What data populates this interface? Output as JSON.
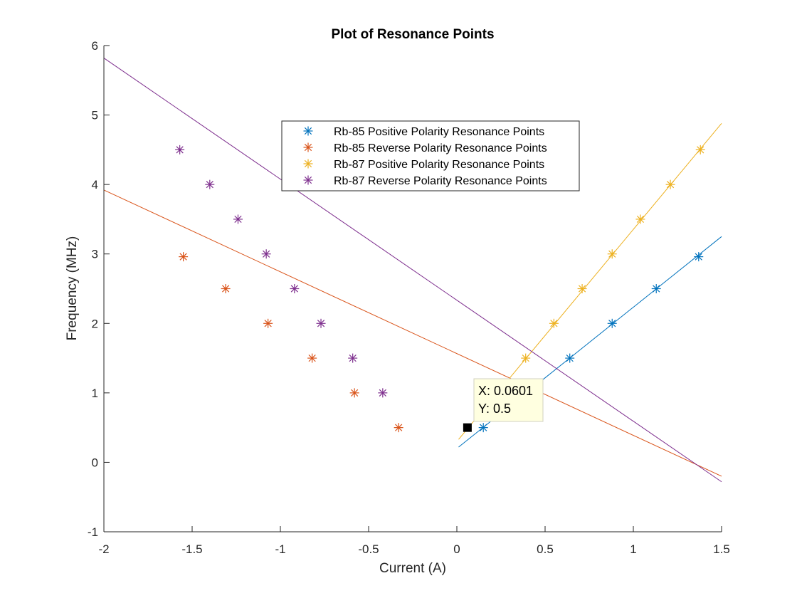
{
  "chart_data": {
    "type": "scatter",
    "title": "Plot of Resonance Points",
    "xlabel": "Current (A)",
    "ylabel": "Frequency (MHz)",
    "xlim": [
      -2,
      1.5
    ],
    "ylim": [
      -1,
      6
    ],
    "xticks": [
      -2,
      -1.5,
      -1,
      -0.5,
      0,
      0.5,
      1,
      1.5
    ],
    "xtick_labels": [
      "-2",
      "-1.5",
      "-1",
      "-0.5",
      "0",
      "0.5",
      "1",
      "1.5"
    ],
    "yticks": [
      -1,
      0,
      1,
      2,
      3,
      4,
      5,
      6
    ],
    "ytick_labels": [
      "-1",
      "0",
      "1",
      "2",
      "3",
      "4",
      "5",
      "6"
    ],
    "grid": false,
    "legend_position": "top-center",
    "series": [
      {
        "name": "Rb-85 Positive Polarity Resonance Points",
        "color": "#0072BD",
        "marker": "asterisk",
        "x": [
          0.15,
          0.64,
          0.88,
          1.13,
          1.37
        ],
        "y": [
          0.5,
          1.5,
          2.0,
          2.5,
          2.96
        ],
        "fit_x": [
          0.01,
          1.5
        ],
        "fit_y": [
          0.22,
          3.25
        ]
      },
      {
        "name": "Rb-85 Reverse Polarity Resonance Points",
        "color": "#D95319",
        "marker": "asterisk",
        "x": [
          -0.33,
          -0.58,
          -0.82,
          -1.07,
          -1.31,
          -1.55
        ],
        "y": [
          0.5,
          1.0,
          1.5,
          2.0,
          2.5,
          2.96
        ],
        "fit_x": [
          -2,
          1.5
        ],
        "fit_y": [
          3.92,
          -0.2
        ]
      },
      {
        "name": "Rb-87 Positive Polarity Resonance Points",
        "color": "#EDB120",
        "marker": "asterisk",
        "x": [
          0.39,
          0.55,
          0.71,
          0.88,
          1.04,
          1.21,
          1.38
        ],
        "y": [
          1.5,
          2.0,
          2.5,
          3.0,
          3.5,
          4.0,
          4.5
        ],
        "fit_x": [
          0.01,
          1.5
        ],
        "fit_y": [
          0.33,
          4.88
        ]
      },
      {
        "name": "Rb-87 Reverse Polarity Resonance Points",
        "color": "#7E2F8E",
        "marker": "asterisk",
        "x": [
          -0.42,
          -0.59,
          -0.77,
          -0.92,
          -1.08,
          -1.24,
          -1.4,
          -1.57
        ],
        "y": [
          1.0,
          1.5,
          2.0,
          2.5,
          3.0,
          3.5,
          4.0,
          4.5
        ],
        "fit_x": [
          -2,
          1.5
        ],
        "fit_y": [
          5.82,
          -0.28
        ]
      }
    ],
    "annotations": [
      {
        "type": "datatip",
        "x": 0.0601,
        "y": 0.5,
        "label_x": "X: 0.0601",
        "label_y": "Y: 0.5"
      }
    ]
  }
}
